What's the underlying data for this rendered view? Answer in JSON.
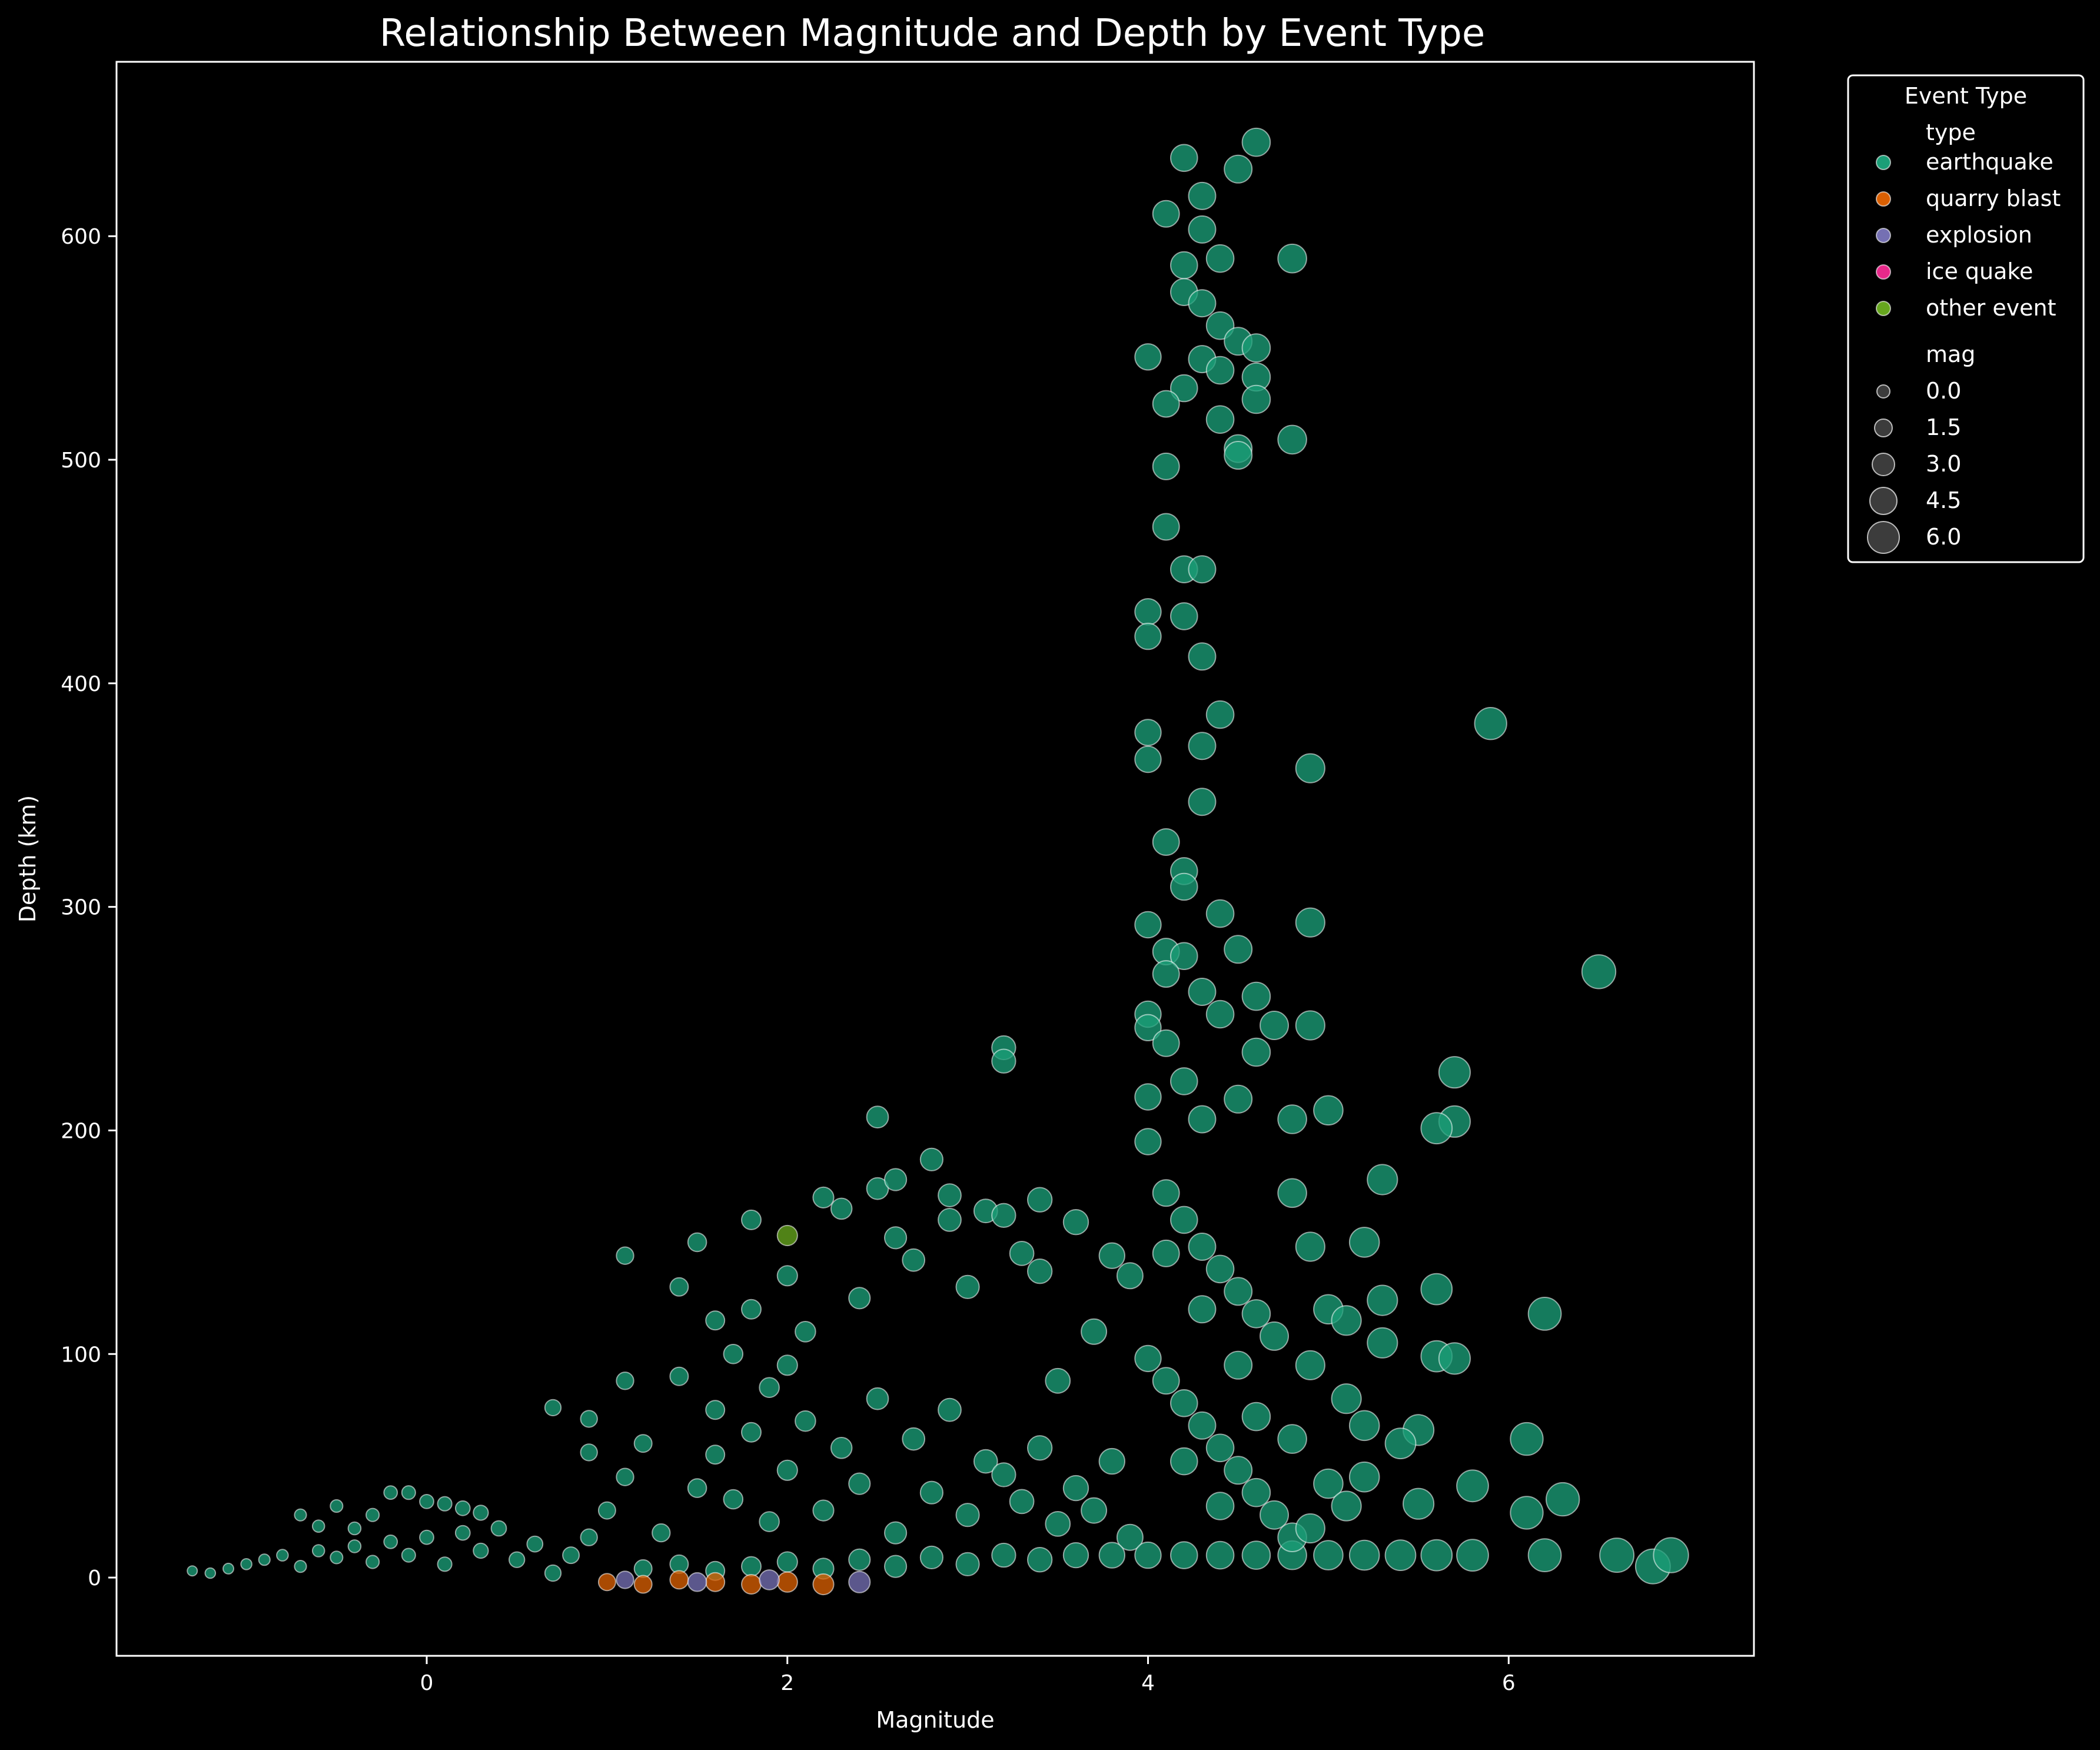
{
  "chart_data": {
    "type": "scatter",
    "title": "Relationship Between Magnitude and Depth by Event Type",
    "xlabel": "Magnitude",
    "ylabel": "Depth (km)",
    "xlim": [
      -1.72,
      7.36
    ],
    "ylim": [
      -35,
      678
    ],
    "xticks": [
      0,
      2,
      4,
      6
    ],
    "yticks": [
      0,
      100,
      200,
      300,
      400,
      500,
      600
    ],
    "grid": false,
    "legend": {
      "title": "Event Type",
      "placement": "upper-right-outside",
      "hue_title": "type",
      "hue_entries": [
        {
          "label": "earthquake",
          "color": "#1b9e77"
        },
        {
          "label": "quarry blast",
          "color": "#d95f02"
        },
        {
          "label": "explosion",
          "color": "#7570b3"
        },
        {
          "label": "ice quake",
          "color": "#e7298a"
        },
        {
          "label": "other event",
          "color": "#66a61e"
        }
      ],
      "size_title": "mag",
      "size_entries": [
        "0.0",
        "1.5",
        "3.0",
        "4.5",
        "6.0"
      ]
    },
    "colors": {
      "background": "#000000",
      "axes": "#ffffff",
      "marker_edge": "#ffffff"
    },
    "series": [
      {
        "name": "earthquake",
        "color": "#1b9e77",
        "points": [
          [
            -1.3,
            3
          ],
          [
            -1.2,
            2
          ],
          [
            -1.1,
            4
          ],
          [
            -1.0,
            6
          ],
          [
            -0.9,
            8
          ],
          [
            -0.8,
            10
          ],
          [
            -0.7,
            5
          ],
          [
            -0.6,
            12
          ],
          [
            -0.5,
            9
          ],
          [
            -0.4,
            14
          ],
          [
            -0.3,
            7
          ],
          [
            -0.2,
            16
          ],
          [
            -0.1,
            10
          ],
          [
            0.0,
            18
          ],
          [
            0.1,
            6
          ],
          [
            0.2,
            20
          ],
          [
            0.3,
            12
          ],
          [
            0.4,
            22
          ],
          [
            0.5,
            8
          ],
          [
            0.6,
            15
          ],
          [
            -0.7,
            28
          ],
          [
            -0.6,
            23
          ],
          [
            -0.5,
            32
          ],
          [
            -0.4,
            22
          ],
          [
            -0.3,
            28
          ],
          [
            -0.2,
            38
          ],
          [
            -0.1,
            38
          ],
          [
            0.0,
            34
          ],
          [
            0.1,
            33
          ],
          [
            0.2,
            31
          ],
          [
            0.3,
            29
          ],
          [
            0.7,
            76
          ],
          [
            0.9,
            71
          ],
          [
            0.9,
            56
          ],
          [
            1.1,
            144
          ],
          [
            1.1,
            88
          ],
          [
            0.7,
            2
          ],
          [
            0.8,
            10
          ],
          [
            0.9,
            18
          ],
          [
            1.0,
            30
          ],
          [
            1.1,
            45
          ],
          [
            1.2,
            60
          ],
          [
            1.3,
            20
          ],
          [
            1.4,
            90
          ],
          [
            1.4,
            130
          ],
          [
            1.5,
            150
          ],
          [
            1.6,
            115
          ],
          [
            1.6,
            75
          ],
          [
            1.7,
            100
          ],
          [
            1.8,
            160
          ],
          [
            1.8,
            120
          ],
          [
            1.9,
            85
          ],
          [
            2.0,
            135
          ],
          [
            2.0,
            95
          ],
          [
            2.1,
            110
          ],
          [
            2.2,
            170
          ],
          [
            2.3,
            165
          ],
          [
            2.4,
            125
          ],
          [
            2.5,
            206
          ],
          [
            2.5,
            174
          ],
          [
            2.6,
            178
          ],
          [
            2.6,
            152
          ],
          [
            2.7,
            142
          ],
          [
            2.8,
            187
          ],
          [
            2.9,
            171
          ],
          [
            2.9,
            160
          ],
          [
            3.0,
            130
          ],
          [
            3.1,
            164
          ],
          [
            3.2,
            162
          ],
          [
            3.2,
            237
          ],
          [
            3.2,
            231
          ],
          [
            3.3,
            145
          ],
          [
            3.4,
            169
          ],
          [
            3.4,
            137
          ],
          [
            3.5,
            88
          ],
          [
            3.6,
            159
          ],
          [
            3.7,
            110
          ],
          [
            3.8,
            144
          ],
          [
            3.9,
            135
          ],
          [
            1.5,
            40
          ],
          [
            1.6,
            55
          ],
          [
            1.7,
            35
          ],
          [
            1.8,
            65
          ],
          [
            1.9,
            25
          ],
          [
            2.0,
            48
          ],
          [
            2.1,
            70
          ],
          [
            2.2,
            30
          ],
          [
            2.3,
            58
          ],
          [
            2.4,
            42
          ],
          [
            2.5,
            80
          ],
          [
            2.6,
            20
          ],
          [
            2.7,
            62
          ],
          [
            2.8,
            38
          ],
          [
            2.9,
            75
          ],
          [
            3.0,
            28
          ],
          [
            3.1,
            52
          ],
          [
            3.2,
            46
          ],
          [
            3.3,
            34
          ],
          [
            3.4,
            58
          ],
          [
            3.5,
            24
          ],
          [
            3.6,
            40
          ],
          [
            3.7,
            30
          ],
          [
            3.8,
            52
          ],
          [
            3.9,
            18
          ],
          [
            1.2,
            4
          ],
          [
            1.4,
            6
          ],
          [
            1.6,
            3
          ],
          [
            1.8,
            5
          ],
          [
            2.0,
            7
          ],
          [
            2.2,
            4
          ],
          [
            2.4,
            8
          ],
          [
            2.6,
            5
          ],
          [
            2.8,
            9
          ],
          [
            3.0,
            6
          ],
          [
            3.2,
            10
          ],
          [
            3.4,
            8
          ],
          [
            3.6,
            10
          ],
          [
            3.8,
            10
          ],
          [
            4.0,
            10
          ],
          [
            4.2,
            10
          ],
          [
            4.4,
            10
          ],
          [
            4.6,
            10
          ],
          [
            4.8,
            10
          ],
          [
            5.0,
            10
          ],
          [
            5.2,
            10
          ],
          [
            5.4,
            10
          ],
          [
            5.6,
            10
          ],
          [
            5.8,
            10
          ],
          [
            6.2,
            10
          ],
          [
            6.6,
            10
          ],
          [
            6.8,
            5
          ],
          [
            6.9,
            10
          ],
          [
            4.0,
            546
          ],
          [
            4.1,
            610
          ],
          [
            4.2,
            635
          ],
          [
            4.3,
            618
          ],
          [
            4.3,
            603
          ],
          [
            4.5,
            630
          ],
          [
            4.6,
            642
          ],
          [
            4.8,
            590
          ],
          [
            4.2,
            587
          ],
          [
            4.4,
            590
          ],
          [
            4.2,
            575
          ],
          [
            4.3,
            570
          ],
          [
            4.4,
            560
          ],
          [
            4.5,
            553
          ],
          [
            4.6,
            550
          ],
          [
            4.3,
            545
          ],
          [
            4.4,
            540
          ],
          [
            4.6,
            537
          ],
          [
            4.2,
            532
          ],
          [
            4.1,
            525
          ],
          [
            4.4,
            518
          ],
          [
            4.5,
            505
          ],
          [
            4.8,
            509
          ],
          [
            4.5,
            502
          ],
          [
            4.6,
            527
          ],
          [
            4.1,
            497
          ],
          [
            4.1,
            470
          ],
          [
            4.2,
            451
          ],
          [
            4.3,
            451
          ],
          [
            4.0,
            432
          ],
          [
            4.2,
            430
          ],
          [
            4.0,
            421
          ],
          [
            4.3,
            412
          ],
          [
            4.4,
            386
          ],
          [
            4.0,
            378
          ],
          [
            4.3,
            372
          ],
          [
            4.0,
            366
          ],
          [
            4.9,
            362
          ],
          [
            4.3,
            347
          ],
          [
            4.1,
            329
          ],
          [
            4.2,
            316
          ],
          [
            4.2,
            309
          ],
          [
            4.0,
            292
          ],
          [
            4.9,
            293
          ],
          [
            4.4,
            297
          ],
          [
            4.1,
            280
          ],
          [
            4.2,
            278
          ],
          [
            4.5,
            281
          ],
          [
            4.1,
            270
          ],
          [
            4.3,
            262
          ],
          [
            4.6,
            260
          ],
          [
            4.0,
            252
          ],
          [
            4.4,
            252
          ],
          [
            4.0,
            246
          ],
          [
            4.7,
            247
          ],
          [
            4.9,
            247
          ],
          [
            4.1,
            239
          ],
          [
            4.6,
            235
          ],
          [
            4.2,
            222
          ],
          [
            4.5,
            214
          ],
          [
            4.0,
            215
          ],
          [
            4.8,
            205
          ],
          [
            4.3,
            205
          ],
          [
            5.9,
            382
          ],
          [
            6.5,
            271
          ],
          [
            5.7,
            226
          ],
          [
            5.7,
            204
          ],
          [
            5.0,
            209
          ],
          [
            5.6,
            201
          ],
          [
            5.3,
            178
          ],
          [
            4.8,
            172
          ],
          [
            5.2,
            150
          ],
          [
            4.9,
            148
          ],
          [
            5.6,
            129
          ],
          [
            5.3,
            124
          ],
          [
            6.2,
            118
          ],
          [
            5.0,
            120
          ],
          [
            5.1,
            115
          ],
          [
            5.3,
            105
          ],
          [
            5.6,
            99
          ],
          [
            5.7,
            98
          ],
          [
            4.9,
            95
          ],
          [
            5.1,
            80
          ],
          [
            5.2,
            68
          ],
          [
            5.5,
            66
          ],
          [
            6.1,
            62
          ],
          [
            5.4,
            60
          ],
          [
            5.8,
            41
          ],
          [
            6.3,
            35
          ],
          [
            6.1,
            29
          ],
          [
            5.5,
            33
          ],
          [
            4.0,
            195
          ],
          [
            4.1,
            172
          ],
          [
            4.2,
            160
          ],
          [
            4.3,
            148
          ],
          [
            4.4,
            138
          ],
          [
            4.5,
            128
          ],
          [
            4.6,
            118
          ],
          [
            4.7,
            108
          ],
          [
            4.0,
            98
          ],
          [
            4.1,
            88
          ],
          [
            4.2,
            78
          ],
          [
            4.3,
            68
          ],
          [
            4.4,
            58
          ],
          [
            4.5,
            48
          ],
          [
            4.6,
            38
          ],
          [
            4.7,
            28
          ],
          [
            4.8,
            18
          ],
          [
            4.1,
            145
          ],
          [
            4.3,
            120
          ],
          [
            4.5,
            95
          ],
          [
            4.2,
            52
          ],
          [
            4.4,
            32
          ],
          [
            4.6,
            72
          ],
          [
            4.8,
            62
          ],
          [
            5.0,
            42
          ],
          [
            4.9,
            22
          ],
          [
            5.1,
            32
          ],
          [
            5.2,
            45
          ]
        ]
      },
      {
        "name": "quarry blast",
        "color": "#d95f02",
        "points": [
          [
            1.0,
            -2
          ],
          [
            1.2,
            -3
          ],
          [
            1.4,
            -1
          ],
          [
            1.6,
            -2
          ],
          [
            1.8,
            -3
          ],
          [
            2.0,
            -2
          ],
          [
            2.2,
            -3
          ]
        ]
      },
      {
        "name": "explosion",
        "color": "#7570b3",
        "points": [
          [
            1.1,
            -1
          ],
          [
            1.5,
            -2
          ],
          [
            1.9,
            -1
          ],
          [
            2.4,
            -2
          ]
        ]
      },
      {
        "name": "other event",
        "color": "#66a61e",
        "points": [
          [
            2.0,
            153
          ]
        ]
      }
    ]
  }
}
